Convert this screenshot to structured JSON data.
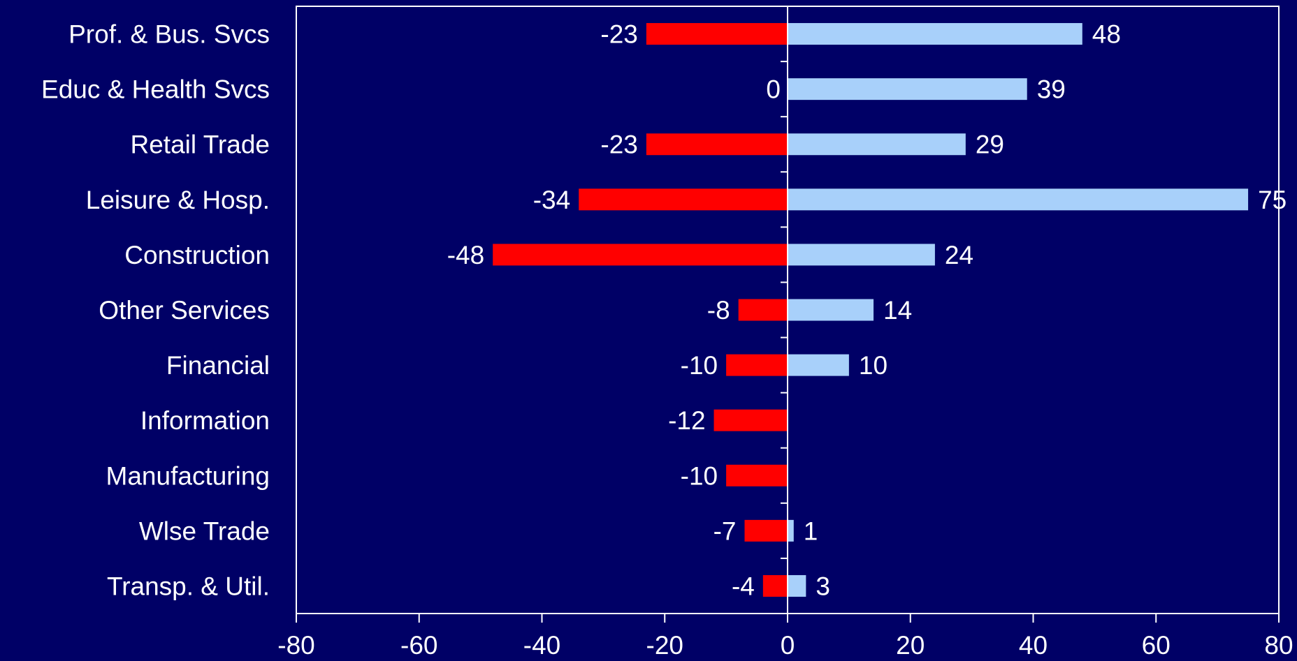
{
  "chart_data": {
    "type": "bar",
    "orientation": "horizontal",
    "categories": [
      "Prof. & Bus. Svcs",
      "Educ & Health Svcs",
      "Retail Trade",
      "Leisure & Hosp.",
      "Construction",
      "Other Services",
      "Financial",
      "Information",
      "Manufacturing",
      "Wlse Trade",
      "Transp. & Util."
    ],
    "series": [
      {
        "color": "#ff0000",
        "values": [
          -23,
          0,
          -23,
          -34,
          -48,
          -8,
          -10,
          -12,
          -10,
          -7,
          -4
        ],
        "labels": [
          "-23",
          "0",
          "-23",
          "-34",
          "-48",
          "-8",
          "-10",
          "-12",
          "-10",
          "-7",
          "-4"
        ]
      },
      {
        "color": "#a8d0fa",
        "values": [
          48,
          39,
          29,
          75,
          24,
          14,
          10,
          null,
          null,
          1,
          3
        ],
        "labels": [
          "48",
          "39",
          "29",
          "75",
          "24",
          "14",
          "10",
          "",
          "",
          "1",
          "3"
        ]
      }
    ],
    "xlim": [
      -80,
      80
    ],
    "xticks": [
      -80,
      -60,
      -40,
      -20,
      0,
      20,
      40,
      60,
      80
    ],
    "xtick_labels": [
      "-80",
      "-60",
      "-40",
      "-20",
      "0",
      "20",
      "40",
      "60",
      "80"
    ],
    "grid": false,
    "legend": "none",
    "colors": {
      "background": "#000066",
      "axis": "#ffffff",
      "text": "#ffffff"
    }
  }
}
